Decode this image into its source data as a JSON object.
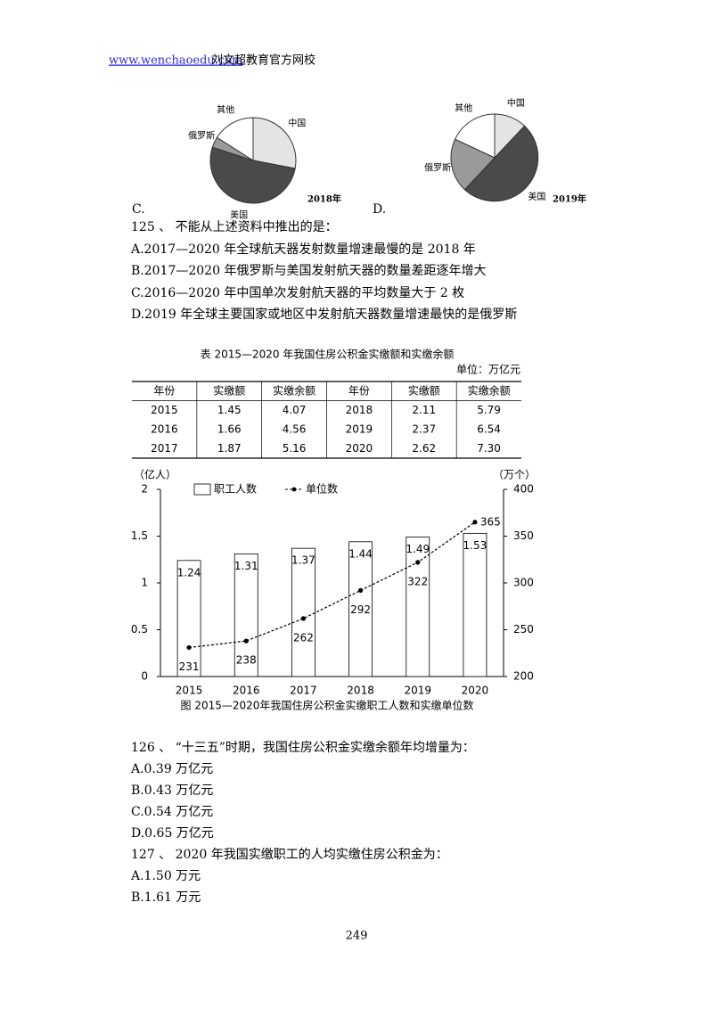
{
  "header": {
    "link": "www.wenchaoedu.com",
    "site": "刘文超教育官方网校"
  },
  "chart_data": [
    {
      "type": "pie",
      "option": "C.",
      "title": "2018年",
      "categories": [
        "中国",
        "美国",
        "俄罗斯",
        "其他"
      ],
      "values": [
        28,
        52,
        4,
        16
      ],
      "colors": [
        "#e4e4e4",
        "#4a4a4a",
        "#9a9a9a",
        "#ffffff"
      ]
    },
    {
      "type": "pie",
      "option": "D.",
      "title": "2019年",
      "categories": [
        "中国",
        "美国",
        "俄罗斯",
        "其他"
      ],
      "values": [
        12,
        50,
        20,
        18
      ],
      "colors": [
        "#e4e4e4",
        "#4a4a4a",
        "#9a9a9a",
        "#ffffff"
      ]
    },
    {
      "type": "bar",
      "title": "图 2015—2020年我国住房公积金实缴职工人数和实缴单位数",
      "ylabel": "（亿人）",
      "y2label": "（万个）",
      "categories": [
        "2015",
        "2016",
        "2017",
        "2018",
        "2019",
        "2020"
      ],
      "series": [
        {
          "name": "职工人数",
          "type": "bar",
          "color": "#ffffff",
          "values": [
            1.24,
            1.31,
            1.37,
            1.44,
            1.49,
            1.53
          ]
        },
        {
          "name": "单位数",
          "type": "line",
          "axis": "y2",
          "color": "#000000",
          "values": [
            231,
            238,
            262,
            292,
            322,
            365
          ]
        }
      ],
      "ylim": [
        0,
        2
      ],
      "yticks": [
        0,
        0.5,
        1,
        1.5,
        2
      ],
      "y2lim": [
        200,
        400
      ],
      "y2ticks": [
        200,
        250,
        300,
        350,
        400
      ]
    }
  ],
  "q125": {
    "question": "125 、 不能从上述资料中推出的是：",
    "options": [
      "A.2017—2020 年全球航天器发射数量增速最慢的是 2018 年",
      "B.2017—2020 年俄罗斯与美国发射航天器的数量差距逐年增大",
      "C.2016—2020 年中国单次发射航天器的平均数量大于 2 枚",
      "D.2019 年全球主要国家或地区中发射航天器数量增速最快的是俄罗斯"
    ]
  },
  "table": {
    "title": "表 2015—2020 年我国住房公积金实缴额和实缴余额",
    "unit": "单位：万亿元",
    "headers": [
      "年份",
      "实缴额",
      "实缴余额",
      "年份",
      "实缴额",
      "实缴余额"
    ],
    "rows": [
      [
        "2015",
        "1.45",
        "4.07",
        "2018",
        "2.11",
        "5.79"
      ],
      [
        "2016",
        "1.66",
        "4.56",
        "2019",
        "2.37",
        "6.54"
      ],
      [
        "2017",
        "1.87",
        "5.16",
        "2020",
        "2.62",
        "7.30"
      ]
    ]
  },
  "q126": {
    "question": "126 、 “十三五”时期，我国住房公积金实缴余额年均增量为：",
    "options": [
      "A.0.39 万亿元",
      "B.0.43 万亿元",
      "C.0.54 万亿元",
      "D.0.65 万亿元"
    ]
  },
  "q127": {
    "question": "127 、 2020 年我国实缴职工的人均实缴住房公积金为：",
    "options": [
      "A.1.50 万元",
      "B.1.61 万元"
    ]
  },
  "page_number": "249"
}
